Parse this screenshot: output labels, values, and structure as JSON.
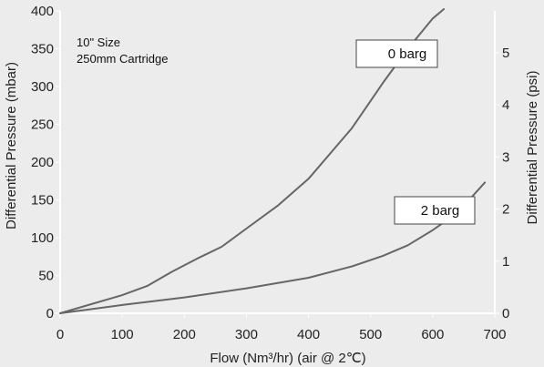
{
  "chart_data": {
    "type": "line",
    "xlabel": "Flow (Nm³/hr) (air @ 2℃)",
    "ylabel": "Differential Pressure (mbar)",
    "ylabel_right": "Differential Pressure (psi)",
    "xlim": [
      0,
      700
    ],
    "ylim": [
      0,
      400
    ],
    "ylim_right": [
      0,
      5.8
    ],
    "xticks": [
      "0",
      "100",
      "200",
      "300",
      "400",
      "500",
      "600",
      "700"
    ],
    "yticks": [
      "0",
      "50",
      "100",
      "150",
      "200",
      "250",
      "300",
      "350",
      "400"
    ],
    "yticks_right": [
      "0",
      "1",
      "2",
      "3",
      "4",
      "5"
    ],
    "grid": false,
    "annotations": [
      "10\" Size",
      "250mm Cartridge"
    ],
    "series": [
      {
        "name": "0 barg",
        "color": "#666666",
        "x": [
          0,
          50,
          100,
          140,
          180,
          220,
          260,
          300,
          350,
          400,
          470,
          520,
          560,
          600,
          618
        ],
        "y": [
          0,
          12,
          24,
          36,
          55,
          72,
          88,
          112,
          142,
          178,
          245,
          305,
          350,
          390,
          405
        ]
      },
      {
        "name": "2 barg",
        "color": "#666666",
        "x": [
          0,
          100,
          200,
          300,
          400,
          470,
          520,
          560,
          600,
          640,
          684
        ],
        "y": [
          0,
          11,
          21,
          33,
          47,
          62,
          76,
          90,
          110,
          133,
          173
        ]
      }
    ]
  }
}
